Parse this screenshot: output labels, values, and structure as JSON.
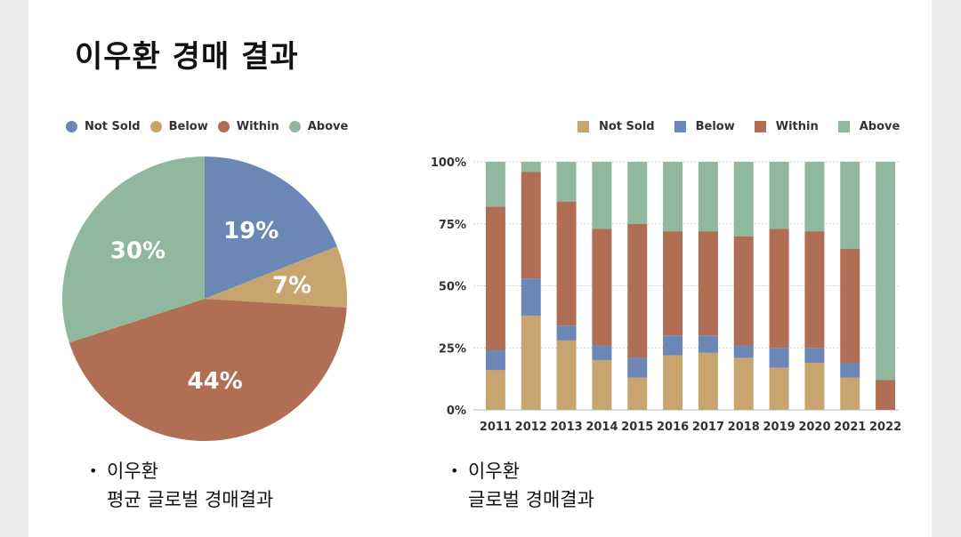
{
  "title": "이우환 경매 결과",
  "colors": {
    "not_sold": "#c8a46e",
    "below": "#6b87b5",
    "within": "#b06e55",
    "above": "#8fb89f"
  },
  "chart_data": [
    {
      "type": "pie",
      "legend": [
        "Not Sold",
        "Below",
        "Within",
        "Above"
      ],
      "legend_colors": [
        "#6b87b5",
        "#c8a46e",
        "#b06e55",
        "#8fb89f"
      ],
      "slices": [
        {
          "name": "Not Sold",
          "value": 19,
          "label": "19%",
          "color": "#6b87b5"
        },
        {
          "name": "Below",
          "value": 7,
          "label": "7%",
          "color": "#c8a46e"
        },
        {
          "name": "Within",
          "value": 44,
          "label": "44%",
          "color": "#b06e55"
        },
        {
          "name": "Above",
          "value": 30,
          "label": "30%",
          "color": "#8fb89f"
        }
      ]
    },
    {
      "type": "bar",
      "stacked": true,
      "legend": [
        "Not Sold",
        "Below",
        "Within",
        "Above"
      ],
      "categories": [
        "2011",
        "2012",
        "2013",
        "2014",
        "2015",
        "2016",
        "2017",
        "2018",
        "2019",
        "2020",
        "2021",
        "2022"
      ],
      "ylim": [
        0,
        100
      ],
      "yticks": [
        "0%",
        "25%",
        "50%",
        "75%",
        "100%"
      ],
      "series": [
        {
          "name": "Not Sold",
          "color": "#c8a46e",
          "values": [
            16,
            38,
            28,
            20,
            13,
            22,
            23,
            21,
            17,
            19,
            13,
            0
          ]
        },
        {
          "name": "Below",
          "color": "#6b87b5",
          "values": [
            8,
            15,
            6,
            6,
            8,
            8,
            7,
            5,
            8,
            6,
            6,
            0
          ]
        },
        {
          "name": "Within",
          "color": "#b06e55",
          "values": [
            58,
            43,
            50,
            47,
            54,
            42,
            42,
            44,
            48,
            47,
            46,
            12
          ]
        },
        {
          "name": "Above",
          "color": "#8fb89f",
          "values": [
            18,
            4,
            16,
            27,
            25,
            28,
            28,
            30,
            27,
            28,
            35,
            88
          ]
        }
      ]
    }
  ],
  "notes": {
    "left": {
      "line1": "이우환",
      "line2": "평균 글로벌 경매결과"
    },
    "right": {
      "line1": "이우환",
      "line2": "글로벌 경매결과"
    },
    "bullet": "•"
  }
}
